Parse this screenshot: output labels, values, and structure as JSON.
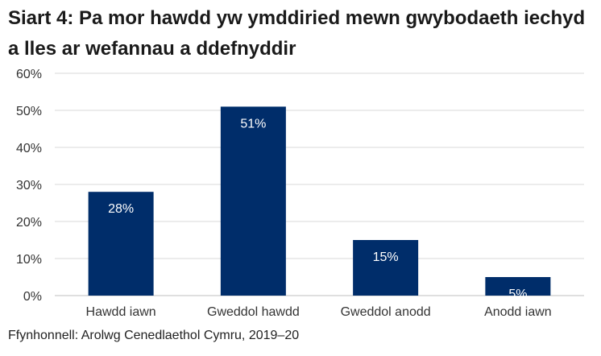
{
  "chart_data": {
    "type": "bar",
    "title": "Siart 4: Pa mor hawdd yw ymddiried mewn gwybodaeth iechyd a lles ar wefannau a ddefnyddir",
    "categories": [
      "Hawdd iawn",
      "Gweddol hawdd",
      "Gweddol anodd",
      "Anodd iawn"
    ],
    "values": [
      28,
      51,
      15,
      5
    ],
    "data_labels": [
      "28%",
      "51%",
      "15%",
      "5%"
    ],
    "yticks": [
      "0%",
      "10%",
      "20%",
      "30%",
      "40%",
      "50%",
      "60%"
    ],
    "ylim": [
      0,
      60
    ],
    "grid": true,
    "bar_color": "#002D6A",
    "xlabel": "",
    "ylabel": ""
  },
  "source": "Ffynhonnell: Arolwg Cenedlaethol Cymru, 2019–20"
}
